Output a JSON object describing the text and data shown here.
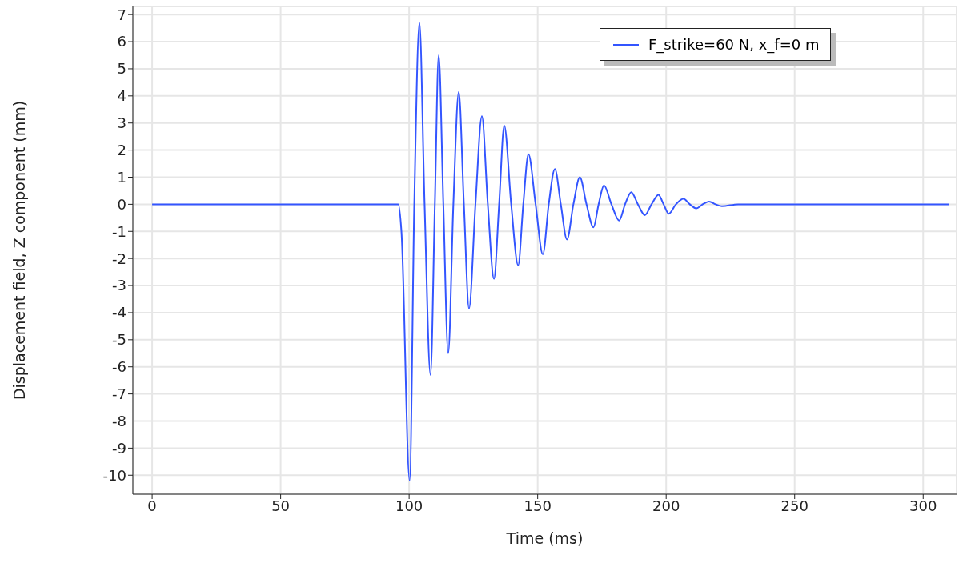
{
  "chart_data": {
    "type": "line",
    "xlabel": "Time (ms)",
    "ylabel": "Displacement field, Z component (mm)",
    "xlim": [
      -7.5,
      313
    ],
    "ylim": [
      -10.7,
      7.3
    ],
    "xticks": [
      0,
      50,
      100,
      150,
      200,
      250,
      300
    ],
    "yticks": [
      -10,
      -9,
      -8,
      -7,
      -6,
      -5,
      -4,
      -3,
      -2,
      -1,
      0,
      1,
      2,
      3,
      4,
      5,
      6,
      7
    ],
    "grid": true,
    "legend": "top right",
    "marker": "none",
    "line_style": "solid",
    "series": [
      {
        "name": "F_strike=60 N, x_f=0 m",
        "color": "#3355ff",
        "x": [
          0,
          95.8,
          97,
          100.2,
          102,
          104,
          106,
          108.3,
          110,
          111.5,
          113.3,
          115.2,
          117.2,
          119.3,
          121.3,
          123.3,
          125.8,
          128.3,
          130.6,
          133,
          135,
          137,
          139.7,
          142.4,
          144.4,
          146.4,
          149.2,
          152,
          154.3,
          156.7,
          159,
          161.4,
          163.9,
          166.4,
          169,
          171.7,
          173.7,
          175.8,
          178.7,
          181.7,
          184,
          186.4,
          189,
          191.7,
          194.3,
          197,
          199,
          201,
          203.8,
          206.7,
          209.2,
          211.7,
          214.2,
          216.7,
          219.2,
          221.7,
          228,
          240,
          310
        ],
        "values": [
          0,
          0,
          -1,
          -10.2,
          0,
          6.7,
          0,
          -6.3,
          0,
          5.5,
          0,
          -5.5,
          0,
          4.15,
          0,
          -3.85,
          0,
          3.25,
          0,
          -2.75,
          0,
          2.9,
          0,
          -2.25,
          0,
          1.85,
          0,
          -1.85,
          0,
          1.3,
          0,
          -1.3,
          0,
          1.0,
          0,
          -0.85,
          0,
          0.7,
          0,
          -0.6,
          0,
          0.45,
          0,
          -0.4,
          0,
          0.35,
          0,
          -0.35,
          0,
          0.2,
          0,
          -0.15,
          0,
          0.1,
          0,
          -0.07,
          0,
          0,
          0
        ]
      }
    ]
  }
}
